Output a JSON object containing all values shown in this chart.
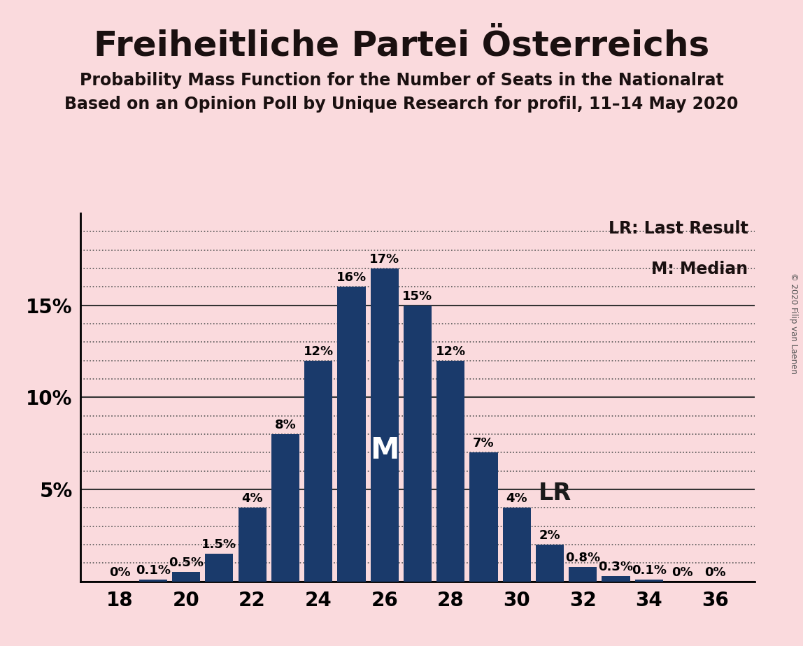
{
  "title": "Freiheitliche Partei Österreichs",
  "subtitle1": "Probability Mass Function for the Number of Seats in the Nationalrat",
  "subtitle2": "Based on an Opinion Poll by Unique Research for profil, 11–14 May 2020",
  "copyright": "© 2020 Filip van Laenen",
  "seats": [
    18,
    19,
    20,
    21,
    22,
    23,
    24,
    25,
    26,
    27,
    28,
    29,
    30,
    31,
    32,
    33,
    34,
    35,
    36
  ],
  "probabilities": [
    0.0,
    0.001,
    0.005,
    0.015,
    0.04,
    0.08,
    0.12,
    0.16,
    0.17,
    0.15,
    0.12,
    0.07,
    0.04,
    0.02,
    0.008,
    0.003,
    0.001,
    0.0,
    0.0
  ],
  "labels": [
    "0%",
    "0.1%",
    "0.5%",
    "1.5%",
    "4%",
    "8%",
    "12%",
    "16%",
    "17%",
    "15%",
    "12%",
    "7%",
    "4%",
    "2%",
    "0.8%",
    "0.3%",
    "0.1%",
    "0%",
    "0%"
  ],
  "bar_color": "#1a3a6b",
  "background_color": "#fadadd",
  "median_seat": 26,
  "last_result_seat": 30,
  "median_label": "M",
  "last_result_label": "LR",
  "median_color": "#ffffff",
  "last_result_color": "#1a1a1a",
  "solid_gridlines": [
    0.0,
    0.05,
    0.1,
    0.15
  ],
  "dotted_gridlines": [
    0.01,
    0.02,
    0.03,
    0.04,
    0.06,
    0.07,
    0.08,
    0.09,
    0.11,
    0.12,
    0.13,
    0.14,
    0.16,
    0.17,
    0.18,
    0.19
  ],
  "yticks": [
    0.05,
    0.1,
    0.15
  ],
  "ytick_labels": [
    "5%",
    "10%",
    "15%"
  ],
  "title_fontsize": 36,
  "subtitle_fontsize": 17,
  "bar_label_fontsize": 13,
  "axis_tick_fontsize": 20,
  "legend_fontsize": 17,
  "median_label_fontsize": 30,
  "lr_label_fontsize": 24
}
